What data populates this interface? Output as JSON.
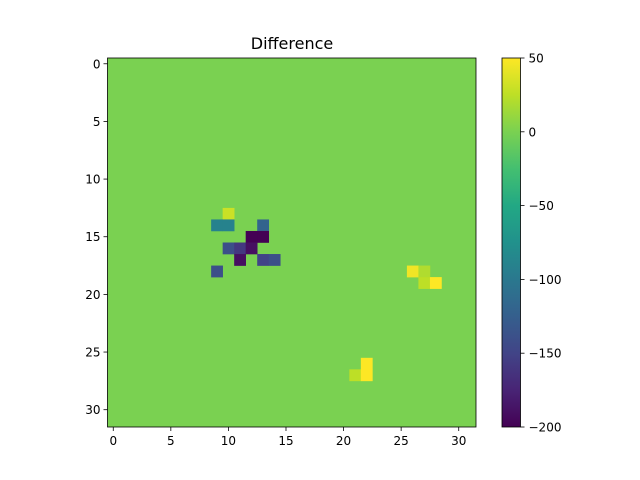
{
  "chart_data": {
    "type": "heatmap",
    "title": "Difference",
    "xlabel": "",
    "ylabel": "",
    "grid_size": [
      32,
      32
    ],
    "background_value": 0,
    "x_ticks": [
      0,
      5,
      10,
      15,
      20,
      25,
      30
    ],
    "y_ticks": [
      0,
      5,
      10,
      15,
      20,
      25,
      30
    ],
    "xlim": [
      -0.5,
      31.5
    ],
    "ylim": [
      31.5,
      -0.5
    ],
    "y_inverted": true,
    "colormap": "viridis",
    "colorbar": {
      "min": -200,
      "max": 50,
      "ticks": [
        50,
        0,
        -50,
        -100,
        -150,
        -200
      ],
      "tick_labels": [
        "50",
        "0",
        "−50",
        "−100",
        "−150",
        "−200"
      ]
    },
    "nonzero_cells": [
      {
        "x": 10,
        "y": 13,
        "value": 30
      },
      {
        "x": 9,
        "y": 14,
        "value": -90
      },
      {
        "x": 10,
        "y": 14,
        "value": -90
      },
      {
        "x": 13,
        "y": 14,
        "value": -120
      },
      {
        "x": 12,
        "y": 15,
        "value": -200
      },
      {
        "x": 13,
        "y": 15,
        "value": -200
      },
      {
        "x": 10,
        "y": 16,
        "value": -140
      },
      {
        "x": 11,
        "y": 16,
        "value": -160
      },
      {
        "x": 12,
        "y": 16,
        "value": -190
      },
      {
        "x": 11,
        "y": 17,
        "value": -190
      },
      {
        "x": 13,
        "y": 17,
        "value": -150
      },
      {
        "x": 14,
        "y": 17,
        "value": -140
      },
      {
        "x": 9,
        "y": 18,
        "value": -140
      },
      {
        "x": 26,
        "y": 18,
        "value": 45
      },
      {
        "x": 27,
        "y": 18,
        "value": 20
      },
      {
        "x": 27,
        "y": 19,
        "value": 25
      },
      {
        "x": 28,
        "y": 19,
        "value": 50
      },
      {
        "x": 22,
        "y": 26,
        "value": 50
      },
      {
        "x": 21,
        "y": 27,
        "value": 25
      },
      {
        "x": 22,
        "y": 27,
        "value": 50
      }
    ]
  }
}
